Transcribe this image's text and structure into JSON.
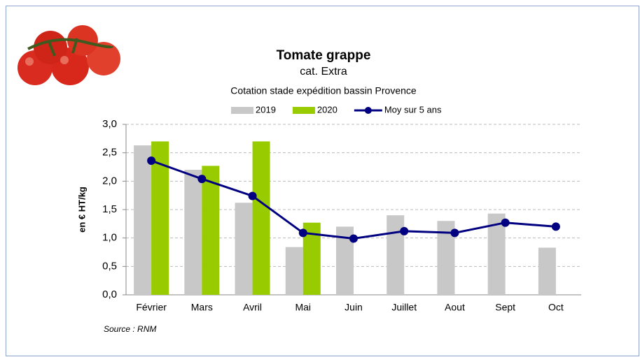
{
  "chart_data": {
    "type": "bar-line",
    "title": "Tomate grappe",
    "subtitle": "cat. Extra",
    "subtitle2": "Cotation stade expédition bassin Provence",
    "y_label": "en € HT/kg",
    "source": "Source : RNM",
    "categories": [
      "Février",
      "Mars",
      "Avril",
      "Mai",
      "Juin",
      "Juillet",
      "Aout",
      "Sept",
      "Oct"
    ],
    "series": [
      {
        "name": "2019",
        "kind": "bar",
        "color": "#c8c8c8",
        "values": [
          2.63,
          2.2,
          1.62,
          0.84,
          1.2,
          1.4,
          1.3,
          1.43,
          0.83
        ]
      },
      {
        "name": "2020",
        "kind": "bar",
        "color": "#99cc00",
        "values": [
          2.7,
          2.27,
          2.7,
          1.27,
          null,
          null,
          null,
          null,
          null
        ]
      },
      {
        "name": "Moy sur 5 ans",
        "kind": "line",
        "color": "#000080",
        "values": [
          2.36,
          2.04,
          1.74,
          1.09,
          0.99,
          1.12,
          1.09,
          1.27,
          1.2
        ]
      }
    ],
    "ylim": [
      0,
      3
    ],
    "yticks": [
      {
        "value": 0,
        "label": "0,0"
      },
      {
        "value": 0.5,
        "label": "0,5"
      },
      {
        "value": 1,
        "label": "1,0"
      },
      {
        "value": 1.5,
        "label": "1,5"
      },
      {
        "value": 2,
        "label": "2,0"
      },
      {
        "value": 2.5,
        "label": "2,5"
      },
      {
        "value": 3,
        "label": "3,0"
      }
    ],
    "grid": true
  }
}
